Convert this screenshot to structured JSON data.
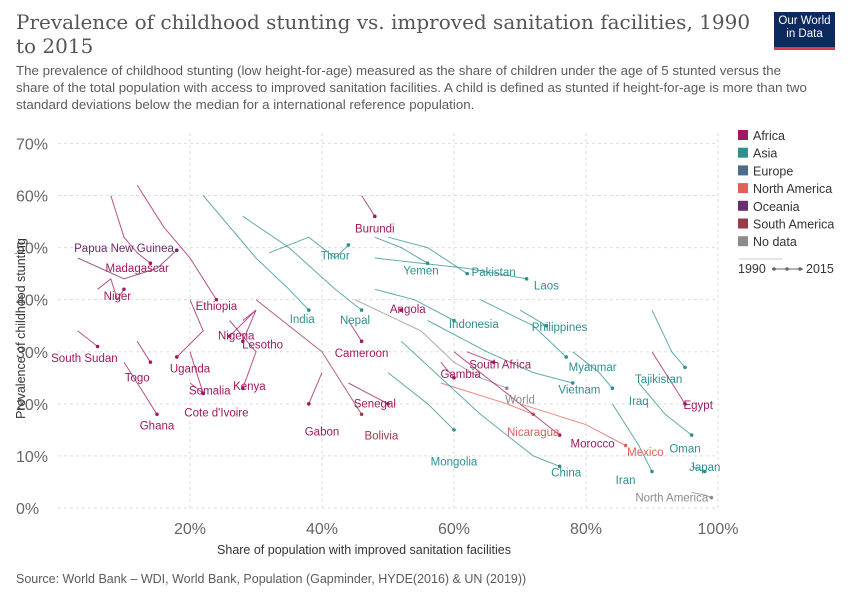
{
  "header": {
    "title": "Prevalence of childhood stunting vs. improved sanitation facilities, 1990 to 2015",
    "subtitle": "The prevalence of childhood stunting (low height-for-age) measured as the share of children under the age of 5 stunted versus the share of the total population with access to improved sanitation facilities. A child is defined as stunted if height-for-age is more than two standard deviations below the median for a international reference population.",
    "logo_line1": "Our World",
    "logo_line2": "in Data"
  },
  "footer": {
    "source": "Source: World Bank – WDI, World Bank, Population (Gapminder, HYDE(2016) & UN (2019))"
  },
  "colors": {
    "Africa": "#a2185e",
    "Asia": "#2f8f8f",
    "Europe": "#4c6a8c",
    "North America": "#e0605a",
    "Oceania": "#6b2d6f",
    "South America": "#9a3a4a",
    "No data": "#8c8c8c"
  },
  "chart_data": {
    "type": "scatter",
    "xlabel": "Share of population with improved sanitation facilities",
    "ylabel": "Prevalence of childhood stunting",
    "xlim": [
      0,
      100
    ],
    "ylim": [
      0,
      72
    ],
    "x_ticks": [
      20,
      40,
      60,
      80,
      100
    ],
    "x_tick_labels": [
      "20%",
      "40%",
      "60%",
      "80%",
      "100%"
    ],
    "y_ticks": [
      0,
      10,
      20,
      30,
      40,
      50,
      60,
      70
    ],
    "y_tick_labels": [
      "0%",
      "10%",
      "20%",
      "30%",
      "40%",
      "50%",
      "60%",
      "70%"
    ],
    "grid": true,
    "legend_position": "right",
    "legend": [
      "Africa",
      "Asia",
      "Europe",
      "North America",
      "Oceania",
      "South America",
      "No data"
    ],
    "time_legend": {
      "start": "1990",
      "end": "2015"
    },
    "series": [
      {
        "name": "Papua New Guinea",
        "continent": "Oceania",
        "points": [
          [
            3,
            48
          ],
          [
            10,
            44
          ],
          [
            15,
            46
          ],
          [
            18,
            49.5
          ]
        ]
      },
      {
        "name": "Madagascar",
        "continent": "Africa",
        "points": [
          [
            8,
            60
          ],
          [
            10,
            52
          ],
          [
            12,
            49
          ],
          [
            14,
            47
          ]
        ]
      },
      {
        "name": "Niger",
        "continent": "Africa",
        "points": [
          [
            6,
            42
          ],
          [
            8,
            44
          ],
          [
            9,
            40
          ],
          [
            10,
            42
          ]
        ]
      },
      {
        "name": "Burundi",
        "continent": "Africa",
        "points": [
          [
            46,
            60
          ],
          [
            47,
            58
          ],
          [
            48,
            56
          ]
        ]
      },
      {
        "name": "Timor",
        "continent": "Asia",
        "points": [
          [
            32,
            49
          ],
          [
            38,
            52
          ],
          [
            42,
            48
          ],
          [
            44,
            50.5
          ]
        ]
      },
      {
        "name": "Yemen",
        "continent": "Asia",
        "points": [
          [
            48,
            52
          ],
          [
            52,
            50
          ],
          [
            56,
            47
          ]
        ]
      },
      {
        "name": "Pakistan",
        "continent": "Asia",
        "points": [
          [
            50,
            52
          ],
          [
            56,
            50
          ],
          [
            62,
            45
          ]
        ]
      },
      {
        "name": "Laos",
        "continent": "Asia",
        "points": [
          [
            48,
            48
          ],
          [
            62,
            46
          ],
          [
            71,
            44
          ]
        ]
      },
      {
        "name": "Ethiopia",
        "continent": "Africa",
        "points": [
          [
            12,
            62
          ],
          [
            16,
            54
          ],
          [
            20,
            48
          ],
          [
            22,
            44
          ],
          [
            24,
            40
          ]
        ]
      },
      {
        "name": "India",
        "continent": "Asia",
        "points": [
          [
            22,
            60
          ],
          [
            30,
            48
          ],
          [
            35,
            42
          ],
          [
            38,
            38
          ]
        ]
      },
      {
        "name": "Nepal",
        "continent": "Asia",
        "points": [
          [
            28,
            56
          ],
          [
            35,
            50
          ],
          [
            42,
            42
          ],
          [
            46,
            38
          ]
        ]
      },
      {
        "name": "Angola",
        "continent": "Africa",
        "points": [
          [
            52,
            38
          ]
        ]
      },
      {
        "name": "Indonesia",
        "continent": "Asia",
        "points": [
          [
            48,
            42
          ],
          [
            54,
            40
          ],
          [
            60,
            36
          ]
        ]
      },
      {
        "name": "Philippines",
        "continent": "Asia",
        "points": [
          [
            70,
            38
          ],
          [
            74,
            35
          ]
        ]
      },
      {
        "name": "Nigeria",
        "continent": "Africa",
        "points": [
          [
            28,
            36
          ],
          [
            30,
            38
          ],
          [
            26,
            33
          ]
        ]
      },
      {
        "name": "Lesotho",
        "continent": "Africa",
        "points": [
          [
            30,
            38
          ],
          [
            28,
            32
          ]
        ]
      },
      {
        "name": "Cameroon",
        "continent": "Africa",
        "points": [
          [
            44,
            36
          ],
          [
            46,
            32
          ]
        ]
      },
      {
        "name": "South Sudan",
        "continent": "Africa",
        "points": [
          [
            3,
            34
          ],
          [
            6,
            31
          ]
        ]
      },
      {
        "name": "Uganda",
        "continent": "Africa",
        "points": [
          [
            20,
            40
          ],
          [
            22,
            34
          ],
          [
            18,
            29
          ]
        ]
      },
      {
        "name": "Myanmar",
        "continent": "Asia",
        "points": [
          [
            64,
            40
          ],
          [
            72,
            35
          ],
          [
            77,
            29
          ]
        ]
      },
      {
        "name": "Tajikistan",
        "continent": "Asia",
        "points": [
          [
            90,
            38
          ],
          [
            93,
            30
          ],
          [
            95,
            27
          ]
        ]
      },
      {
        "name": "Togo",
        "continent": "Africa",
        "points": [
          [
            12,
            32
          ],
          [
            14,
            28
          ]
        ]
      },
      {
        "name": "South Africa",
        "continent": "Africa",
        "points": [
          [
            62,
            30
          ],
          [
            66,
            28
          ]
        ]
      },
      {
        "name": "Gambia",
        "continent": "Africa",
        "points": [
          [
            58,
            28
          ],
          [
            60,
            25
          ]
        ]
      },
      {
        "name": "Somalia",
        "continent": "Africa",
        "points": [
          [
            20,
            24
          ],
          [
            22,
            22
          ]
        ]
      },
      {
        "name": "Kenya",
        "continent": "Africa",
        "points": [
          [
            26,
            36
          ],
          [
            30,
            30
          ],
          [
            28,
            23
          ]
        ]
      },
      {
        "name": "Vietnam",
        "continent": "Asia",
        "points": [
          [
            56,
            36
          ],
          [
            65,
            30
          ],
          [
            72,
            26
          ],
          [
            78,
            24
          ]
        ]
      },
      {
        "name": "Iraq",
        "continent": "Asia",
        "points": [
          [
            78,
            30
          ],
          [
            82,
            26
          ],
          [
            84,
            23
          ]
        ]
      },
      {
        "name": "World",
        "continent": "No data",
        "points": [
          [
            45,
            40
          ],
          [
            55,
            34
          ],
          [
            60,
            28
          ],
          [
            64,
            25
          ],
          [
            68,
            23
          ]
        ]
      },
      {
        "name": "Egypt",
        "continent": "Africa",
        "points": [
          [
            90,
            30
          ],
          [
            94,
            22
          ],
          [
            95,
            20
          ]
        ]
      },
      {
        "name": "Senegal",
        "continent": "Africa",
        "points": [
          [
            44,
            24
          ],
          [
            50,
            20
          ]
        ]
      },
      {
        "name": "Cote d'Ivoire",
        "continent": "Africa",
        "points": [
          [
            20,
            30
          ],
          [
            22,
            22
          ]
        ]
      },
      {
        "name": "Ghana",
        "continent": "Africa",
        "points": [
          [
            10,
            28
          ],
          [
            13,
            22
          ],
          [
            15,
            18
          ]
        ]
      },
      {
        "name": "Gabon",
        "continent": "Africa",
        "points": [
          [
            40,
            26
          ],
          [
            38,
            20
          ]
        ]
      },
      {
        "name": "Bolivia",
        "continent": "South America",
        "points": [
          [
            30,
            40
          ],
          [
            40,
            30
          ],
          [
            46,
            18
          ]
        ]
      },
      {
        "name": "Nicaragua",
        "continent": "North America",
        "points": [
          [
            58,
            24
          ],
          [
            68,
            20
          ],
          [
            72,
            18
          ]
        ]
      },
      {
        "name": "Morocco",
        "continent": "Africa",
        "points": [
          [
            60,
            30
          ],
          [
            70,
            20
          ],
          [
            76,
            14
          ]
        ]
      },
      {
        "name": "Oman",
        "continent": "Asia",
        "points": [
          [
            88,
            24
          ],
          [
            92,
            18
          ],
          [
            96,
            14
          ]
        ]
      },
      {
        "name": "Mexico",
        "continent": "North America",
        "points": [
          [
            70,
            20
          ],
          [
            80,
            16
          ],
          [
            86,
            12
          ]
        ]
      },
      {
        "name": "Mongolia",
        "continent": "Asia",
        "points": [
          [
            50,
            26
          ],
          [
            56,
            20
          ],
          [
            60,
            15
          ]
        ]
      },
      {
        "name": "China",
        "continent": "Asia",
        "points": [
          [
            52,
            32
          ],
          [
            64,
            18
          ],
          [
            72,
            10
          ],
          [
            76,
            8
          ]
        ]
      },
      {
        "name": "Japan",
        "continent": "Asia",
        "points": [
          [
            96,
            8
          ],
          [
            98,
            7
          ]
        ]
      },
      {
        "name": "Iran",
        "continent": "Asia",
        "points": [
          [
            84,
            20
          ],
          [
            88,
            12
          ],
          [
            90,
            7
          ]
        ]
      },
      {
        "name": "North America",
        "continent": "No data",
        "points": [
          [
            96,
            3
          ],
          [
            98,
            2.5
          ],
          [
            99,
            2
          ]
        ]
      }
    ],
    "labels": [
      {
        "text": "Burundi",
        "continent": "Africa",
        "x": 48,
        "y": 53.7
      },
      {
        "text": "Papua New Guinea",
        "continent": "Oceania",
        "x": 10,
        "y": 49.9
      },
      {
        "text": "Timor",
        "continent": "Asia",
        "x": 42,
        "y": 48.5
      },
      {
        "text": "Madagascar",
        "continent": "Africa",
        "x": 12,
        "y": 46.1
      },
      {
        "text": "Yemen",
        "continent": "Asia",
        "x": 55,
        "y": 45.6
      },
      {
        "text": "Pakistan",
        "continent": "Asia",
        "x": 66,
        "y": 45.3
      },
      {
        "text": "Laos",
        "continent": "Asia",
        "x": 74,
        "y": 42.7
      },
      {
        "text": "Niger",
        "continent": "Africa",
        "x": 9,
        "y": 40.7
      },
      {
        "text": "Ethiopia",
        "continent": "Africa",
        "x": 24,
        "y": 38.8
      },
      {
        "text": "Angola",
        "continent": "Africa",
        "x": 53,
        "y": 38.2
      },
      {
        "text": "India",
        "continent": "Asia",
        "x": 37,
        "y": 36.3
      },
      {
        "text": "Nepal",
        "continent": "Asia",
        "x": 45,
        "y": 36.1
      },
      {
        "text": "Indonesia",
        "continent": "Asia",
        "x": 63,
        "y": 35.3
      },
      {
        "text": "Philippines",
        "continent": "Asia",
        "x": 76,
        "y": 34.8
      },
      {
        "text": "Nigeria",
        "continent": "Africa",
        "x": 27,
        "y": 33.1
      },
      {
        "text": "Lesotho",
        "continent": "Africa",
        "x": 31,
        "y": 31.4
      },
      {
        "text": "Cameroon",
        "continent": "Africa",
        "x": 46,
        "y": 29.8
      },
      {
        "text": "South Sudan",
        "continent": "Africa",
        "x": 4,
        "y": 28.8
      },
      {
        "text": "South Africa",
        "continent": "Africa",
        "x": 67,
        "y": 27.6
      },
      {
        "text": "Uganda",
        "continent": "Africa",
        "x": 20,
        "y": 26.8
      },
      {
        "text": "Myanmar",
        "continent": "Asia",
        "x": 81,
        "y": 27.1
      },
      {
        "text": "Gambia",
        "continent": "Africa",
        "x": 61,
        "y": 25.7
      },
      {
        "text": "Togo",
        "continent": "Africa",
        "x": 12,
        "y": 25.1
      },
      {
        "text": "Tajikistan",
        "continent": "Asia",
        "x": 91,
        "y": 24.8
      },
      {
        "text": "Kenya",
        "continent": "Africa",
        "x": 29,
        "y": 23.4
      },
      {
        "text": "Somalia",
        "continent": "Africa",
        "x": 23,
        "y": 22.6
      },
      {
        "text": "Vietnam",
        "continent": "Asia",
        "x": 79,
        "y": 22.8
      },
      {
        "text": "World",
        "continent": "No data",
        "x": 70,
        "y": 20.8
      },
      {
        "text": "Iraq",
        "continent": "Asia",
        "x": 88,
        "y": 20.5
      },
      {
        "text": "Senegal",
        "continent": "Africa",
        "x": 48,
        "y": 20.1
      },
      {
        "text": "Egypt",
        "continent": "Africa",
        "x": 97,
        "y": 19.8
      },
      {
        "text": "Cote d'Ivoire",
        "continent": "Africa",
        "x": 24,
        "y": 18.3
      },
      {
        "text": "Ghana",
        "continent": "Africa",
        "x": 15,
        "y": 15.8
      },
      {
        "text": "Gabon",
        "continent": "Africa",
        "x": 40,
        "y": 14.7
      },
      {
        "text": "Nicaragua",
        "continent": "North America",
        "x": 72,
        "y": 14.6
      },
      {
        "text": "Bolivia",
        "continent": "South America",
        "x": 49,
        "y": 13.9
      },
      {
        "text": "Morocco",
        "continent": "Africa",
        "x": 81,
        "y": 12.4
      },
      {
        "text": "Oman",
        "continent": "Asia",
        "x": 95,
        "y": 11.4
      },
      {
        "text": "Mexico",
        "continent": "North America",
        "x": 89,
        "y": 10.8
      },
      {
        "text": "Mongolia",
        "continent": "Asia",
        "x": 60,
        "y": 8.9
      },
      {
        "text": "Japan",
        "continent": "Asia",
        "x": 98,
        "y": 7.9
      },
      {
        "text": "China",
        "continent": "Asia",
        "x": 77,
        "y": 6.8
      },
      {
        "text": "Iran",
        "continent": "Asia",
        "x": 86,
        "y": 5.4
      },
      {
        "text": "North America",
        "continent": "No data",
        "x": 93,
        "y": 2.0
      }
    ]
  }
}
